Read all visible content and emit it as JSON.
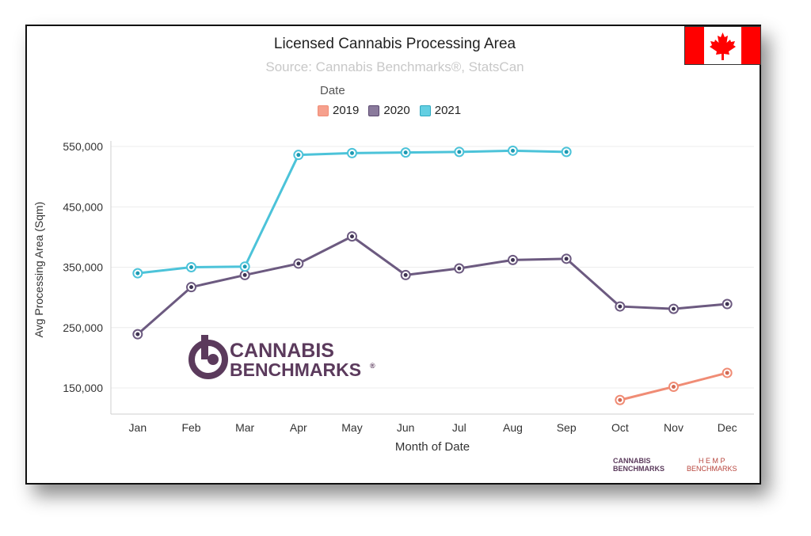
{
  "colors": {
    "series_2019": "#f08c75",
    "series_2020": "#6c5a80",
    "series_2021": "#4cc3d9",
    "brand": "#5b3a5c",
    "hemp": "#b7443c"
  },
  "legend_title": "Date",
  "logo": {
    "line1": "CANNABIS",
    "line2": "BENCHMARKS",
    "reg": "®"
  },
  "footer": {
    "cb_line1": "CANNABIS",
    "cb_line2": "BENCHMARKS",
    "hemp_line1": "H E M P",
    "hemp_line2": "BENCHMARKS"
  },
  "flag": {
    "icon": "canada-flag-icon"
  },
  "chart_data": {
    "type": "line",
    "title": "Licensed Cannabis Processing Area",
    "subtitle": "Source: Cannabis Benchmarks®, StatsCan",
    "xlabel": "Month of Date",
    "ylabel": "Avg Processing Area (Sqm)",
    "categories": [
      "Jan",
      "Feb",
      "Mar",
      "Apr",
      "May",
      "Jun",
      "Jul",
      "Aug",
      "Sep",
      "Oct",
      "Nov",
      "Dec"
    ],
    "yticks": [
      "150,000",
      "250,000",
      "350,000",
      "450,000",
      "550,000"
    ],
    "ylim": [
      110000,
      570000
    ],
    "grid": true,
    "legend_position": "top-center",
    "series": [
      {
        "name": "2019",
        "values": [
          null,
          null,
          null,
          null,
          null,
          null,
          null,
          null,
          null,
          130000,
          152000,
          175000
        ]
      },
      {
        "name": "2020",
        "values": [
          239000,
          317000,
          337000,
          356000,
          401000,
          337000,
          348000,
          362000,
          364000,
          285000,
          281000,
          289000
        ]
      },
      {
        "name": "2021",
        "values": [
          340000,
          350000,
          351000,
          536000,
          539000,
          540000,
          541000,
          543000,
          541000,
          null,
          null,
          null
        ]
      }
    ]
  }
}
